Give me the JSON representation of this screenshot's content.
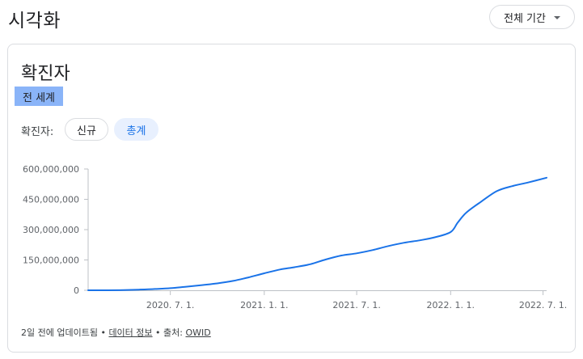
{
  "header": {
    "title": "시각화",
    "period_label": "전체 기간"
  },
  "card": {
    "title": "확진자",
    "region": "전 세계",
    "toggle_label": "확진자:",
    "toggle_new": "신규",
    "toggle_total": "총계"
  },
  "footer": {
    "updated": "2일 전에 업데이트됨",
    "sep1": " • ",
    "data_info": "데이터 정보",
    "sep2": " • 출처: ",
    "source": "OWID"
  },
  "colors": {
    "line": "#1a73e8",
    "chip_active_bg": "#e8f0fe",
    "region_bg": "#8ab4f8"
  },
  "chart_data": {
    "type": "line",
    "title": "",
    "xlabel": "",
    "ylabel": "",
    "y_ticks": [
      "0",
      "150,000,000",
      "300,000,000",
      "450,000,000",
      "600,000,000"
    ],
    "y_tick_values": [
      0,
      150000000,
      300000000,
      450000000,
      600000000
    ],
    "ylim": [
      0,
      600000000
    ],
    "x_ticks": [
      "2020. 7. 1.",
      "2021. 1. 1.",
      "2021. 7. 1.",
      "2022. 1. 1.",
      "2022. 7. 1."
    ],
    "x_tick_values": [
      "2020-07-01",
      "2021-01-01",
      "2021-07-01",
      "2022-01-01",
      "2022-07-01"
    ],
    "xlim": [
      "2020-01-22",
      "2022-07-08"
    ],
    "grid": false,
    "series": [
      {
        "x": [
          "2020-01-22",
          "2020-03-01",
          "2020-04-01",
          "2020-05-01",
          "2020-06-01",
          "2020-07-01",
          "2020-08-01",
          "2020-09-01",
          "2020-10-01",
          "2020-11-01",
          "2020-12-01",
          "2021-01-01",
          "2021-02-01",
          "2021-03-01",
          "2021-04-01",
          "2021-05-01",
          "2021-06-01",
          "2021-07-01",
          "2021-08-01",
          "2021-09-01",
          "2021-10-01",
          "2021-11-01",
          "2021-12-01",
          "2022-01-01",
          "2022-01-15",
          "2022-02-01",
          "2022-03-01",
          "2022-04-01",
          "2022-05-01",
          "2022-06-01",
          "2022-07-08"
        ],
        "y": [
          0,
          100000,
          1000000,
          3300000,
          6200000,
          10500000,
          17700000,
          25600000,
          34100000,
          46400000,
          63800000,
          84000000,
          103000000,
          114000000,
          129000000,
          152000000,
          172000000,
          183000000,
          199000000,
          219000000,
          235000000,
          247000000,
          262000000,
          288000000,
          335000000,
          385000000,
          437000000,
          490000000,
          515000000,
          533000000,
          557000000
        ]
      }
    ]
  }
}
